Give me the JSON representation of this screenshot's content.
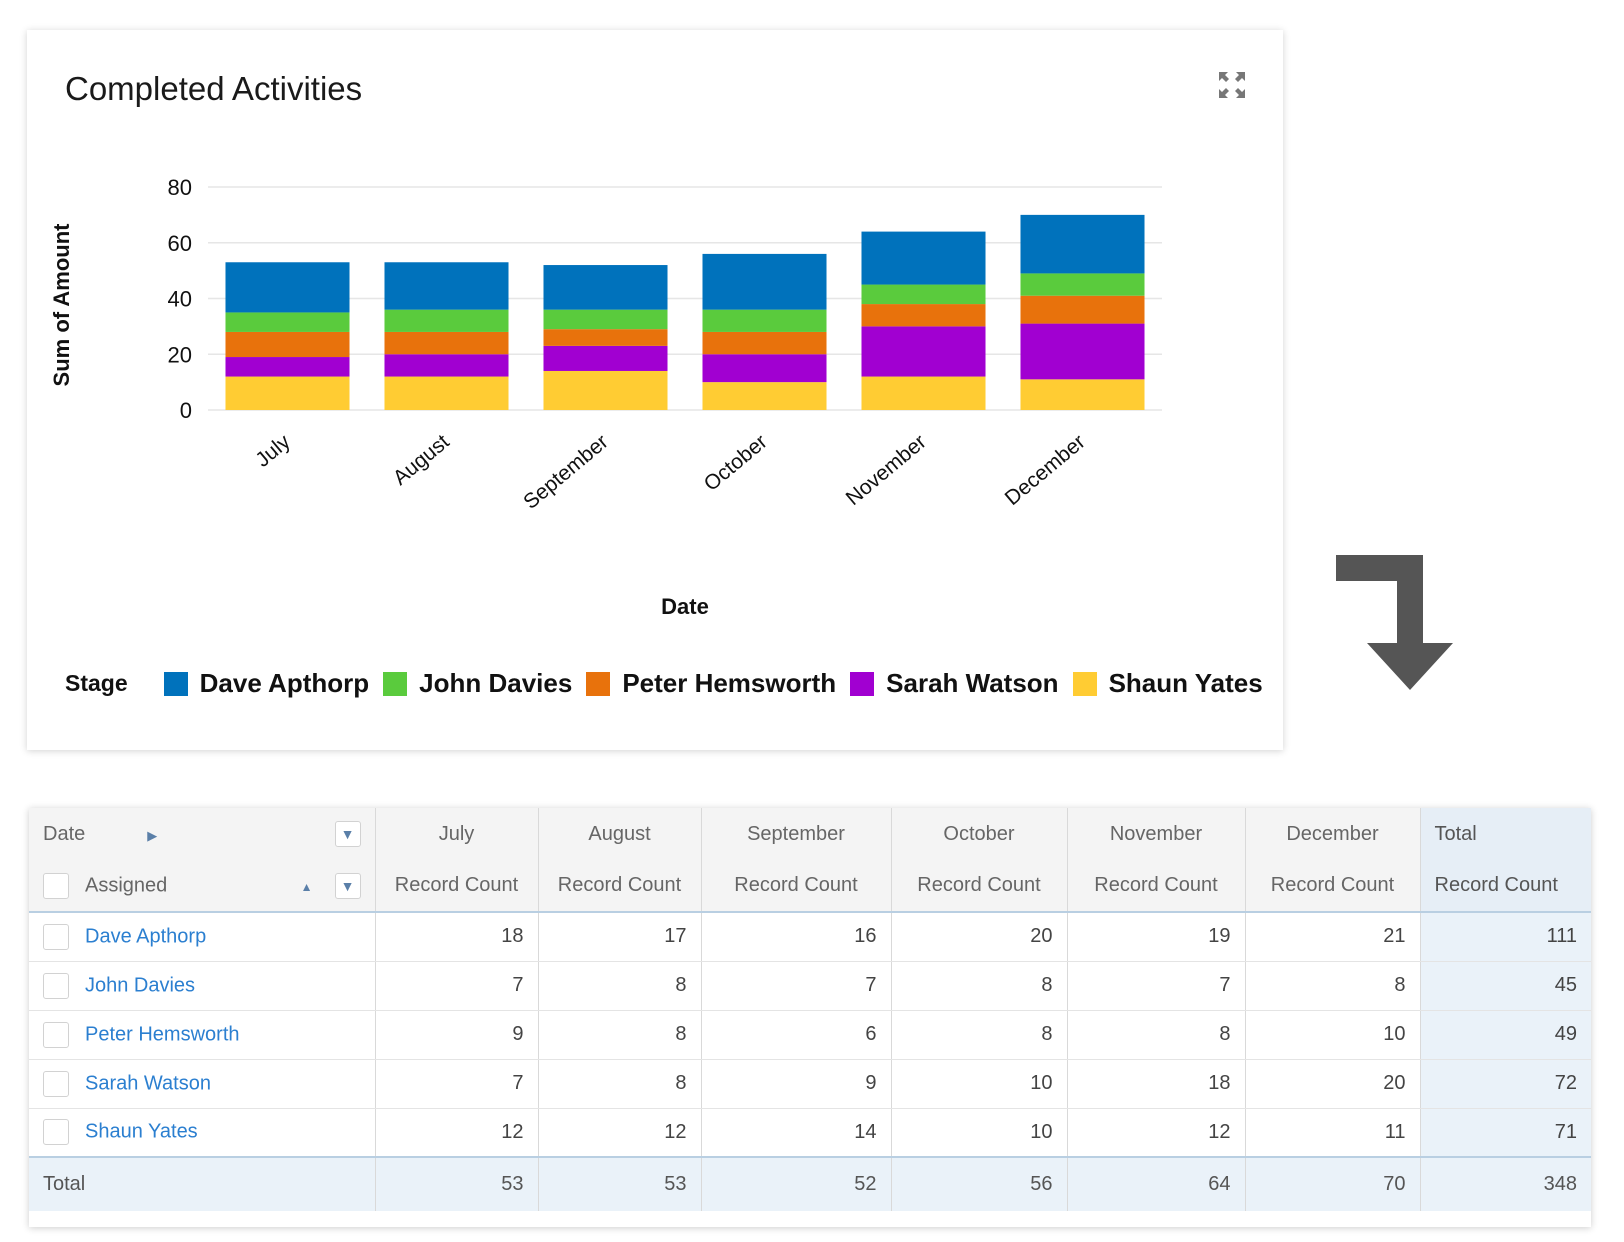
{
  "chart_data": {
    "type": "bar",
    "stacked": true,
    "title": "Completed Activities",
    "xlabel": "Date",
    "ylabel": "Sum of Amount",
    "ylim": [
      0,
      80
    ],
    "yticks": [
      0,
      20,
      40,
      60,
      80
    ],
    "grid": true,
    "legend_position": "bottom",
    "legend_title": "Stage",
    "categories": [
      "July",
      "August",
      "September",
      "October",
      "November",
      "December"
    ],
    "series": [
      {
        "name": "Shaun Yates",
        "color": "#FFCC33",
        "values": [
          12,
          12,
          14,
          10,
          12,
          11
        ]
      },
      {
        "name": "Sarah Watson",
        "color": "#A100D1",
        "values": [
          7,
          8,
          9,
          10,
          18,
          20
        ]
      },
      {
        "name": "Peter Hemsworth",
        "color": "#E8720C",
        "values": [
          9,
          8,
          6,
          8,
          8,
          10
        ]
      },
      {
        "name": "John Davies",
        "color": "#5ACB3D",
        "values": [
          7,
          8,
          7,
          8,
          7,
          8
        ]
      },
      {
        "name": "Dave Apthorp",
        "color": "#0072BC",
        "values": [
          18,
          17,
          16,
          20,
          19,
          21
        ]
      }
    ],
    "legend_order": [
      "Dave Apthorp",
      "John Davies",
      "Peter Hemsworth",
      "Sarah Watson",
      "Shaun Yates"
    ]
  },
  "table": {
    "date_label": "Date",
    "assigned_label": "Assigned",
    "total_label": "Total",
    "measure_label": "Record Count",
    "months": [
      "July",
      "August",
      "September",
      "October",
      "November",
      "December"
    ],
    "rows": [
      {
        "name": "Dave Apthorp",
        "values": [
          "18",
          "17",
          "16",
          "20",
          "19",
          "21"
        ],
        "total": "111"
      },
      {
        "name": "John Davies",
        "values": [
          "7",
          "8",
          "7",
          "8",
          "7",
          "8"
        ],
        "total": "45"
      },
      {
        "name": "Peter Hemsworth",
        "values": [
          "9",
          "8",
          "6",
          "8",
          "8",
          "10"
        ],
        "total": "49"
      },
      {
        "name": "Sarah Watson",
        "values": [
          "7",
          "8",
          "9",
          "10",
          "18",
          "20"
        ],
        "total": "72"
      },
      {
        "name": "Shaun Yates",
        "values": [
          "12",
          "12",
          "14",
          "10",
          "12",
          "11"
        ],
        "total": "71"
      }
    ],
    "totals": [
      "53",
      "53",
      "52",
      "56",
      "64",
      "70"
    ],
    "grand_total": "348"
  },
  "icons": {
    "expand": "expand-icon",
    "arrow": "down-arrow-icon"
  }
}
